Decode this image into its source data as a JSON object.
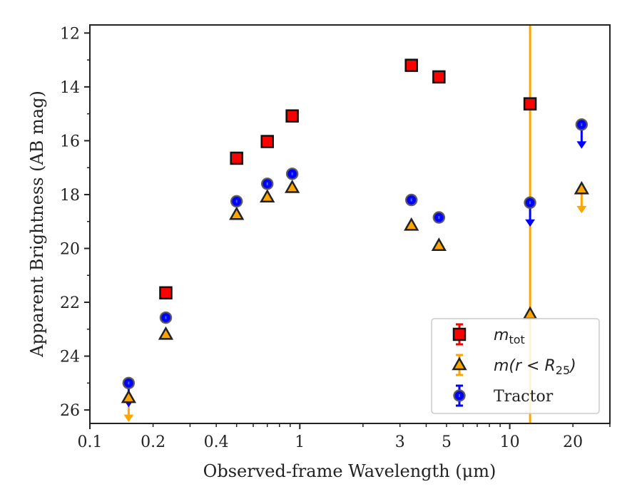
{
  "chart_data": {
    "type": "scatter",
    "title": "",
    "xlabel": "Observed-frame Wavelength (μm)",
    "ylabel": "Apparent Brightness (AB mag)",
    "xscale": "log",
    "xlim": [
      0.1,
      30
    ],
    "ylim": [
      26.5,
      11.7
    ],
    "y_inverted": true,
    "grid": false,
    "legend_position": "lower-right",
    "x_ticks": [
      0.1,
      0.2,
      0.4,
      1,
      3,
      5,
      10,
      20
    ],
    "x_tick_labels": [
      "0.1",
      "0.2",
      "0.4",
      "1",
      "3",
      "5",
      "10",
      "20"
    ],
    "y_ticks": [
      12,
      14,
      16,
      18,
      20,
      22,
      24,
      26
    ],
    "y_tick_labels": [
      "12",
      "14",
      "16",
      "18",
      "20",
      "22",
      "24",
      "26"
    ],
    "vertical_line": {
      "x": 12.5,
      "color": "#FFA500"
    },
    "series": [
      {
        "key": "mtot",
        "label_main": "m",
        "label_sub": "tot",
        "marker": "square",
        "color": "#FF0000",
        "errcolor": "#FF0000",
        "x": [
          0.23,
          0.5,
          0.7,
          0.92,
          3.4,
          4.6,
          12.5
        ],
        "y": [
          21.65,
          16.65,
          16.03,
          15.08,
          13.2,
          13.63,
          14.63
        ],
        "upper_limit": [
          false,
          false,
          false,
          false,
          false,
          false,
          false
        ]
      },
      {
        "key": "mr25",
        "label_main": "m(r < R",
        "label_sub": "25",
        "label_tail": ")",
        "marker": "triangle",
        "color": "#FFA500",
        "errcolor": "#FFA500",
        "x": [
          0.153,
          0.23,
          0.5,
          0.7,
          0.92,
          3.4,
          4.6,
          12.5,
          22.0
        ],
        "y": [
          25.55,
          23.2,
          18.75,
          18.1,
          17.75,
          19.15,
          19.9,
          22.45,
          17.8
        ],
        "upper_limit": [
          true,
          false,
          false,
          false,
          false,
          false,
          false,
          false,
          true
        ]
      },
      {
        "key": "tractor",
        "label_main": "Tractor",
        "marker": "circle",
        "color": "#0000FF",
        "errcolor": "#0000FF",
        "x": [
          0.153,
          0.23,
          0.5,
          0.7,
          0.92,
          3.4,
          4.6,
          12.5,
          22.0
        ],
        "y": [
          25.0,
          22.57,
          18.25,
          17.6,
          17.23,
          18.2,
          18.85,
          18.3,
          15.4
        ],
        "upper_limit": [
          true,
          false,
          false,
          false,
          false,
          false,
          false,
          true,
          true
        ]
      }
    ]
  }
}
